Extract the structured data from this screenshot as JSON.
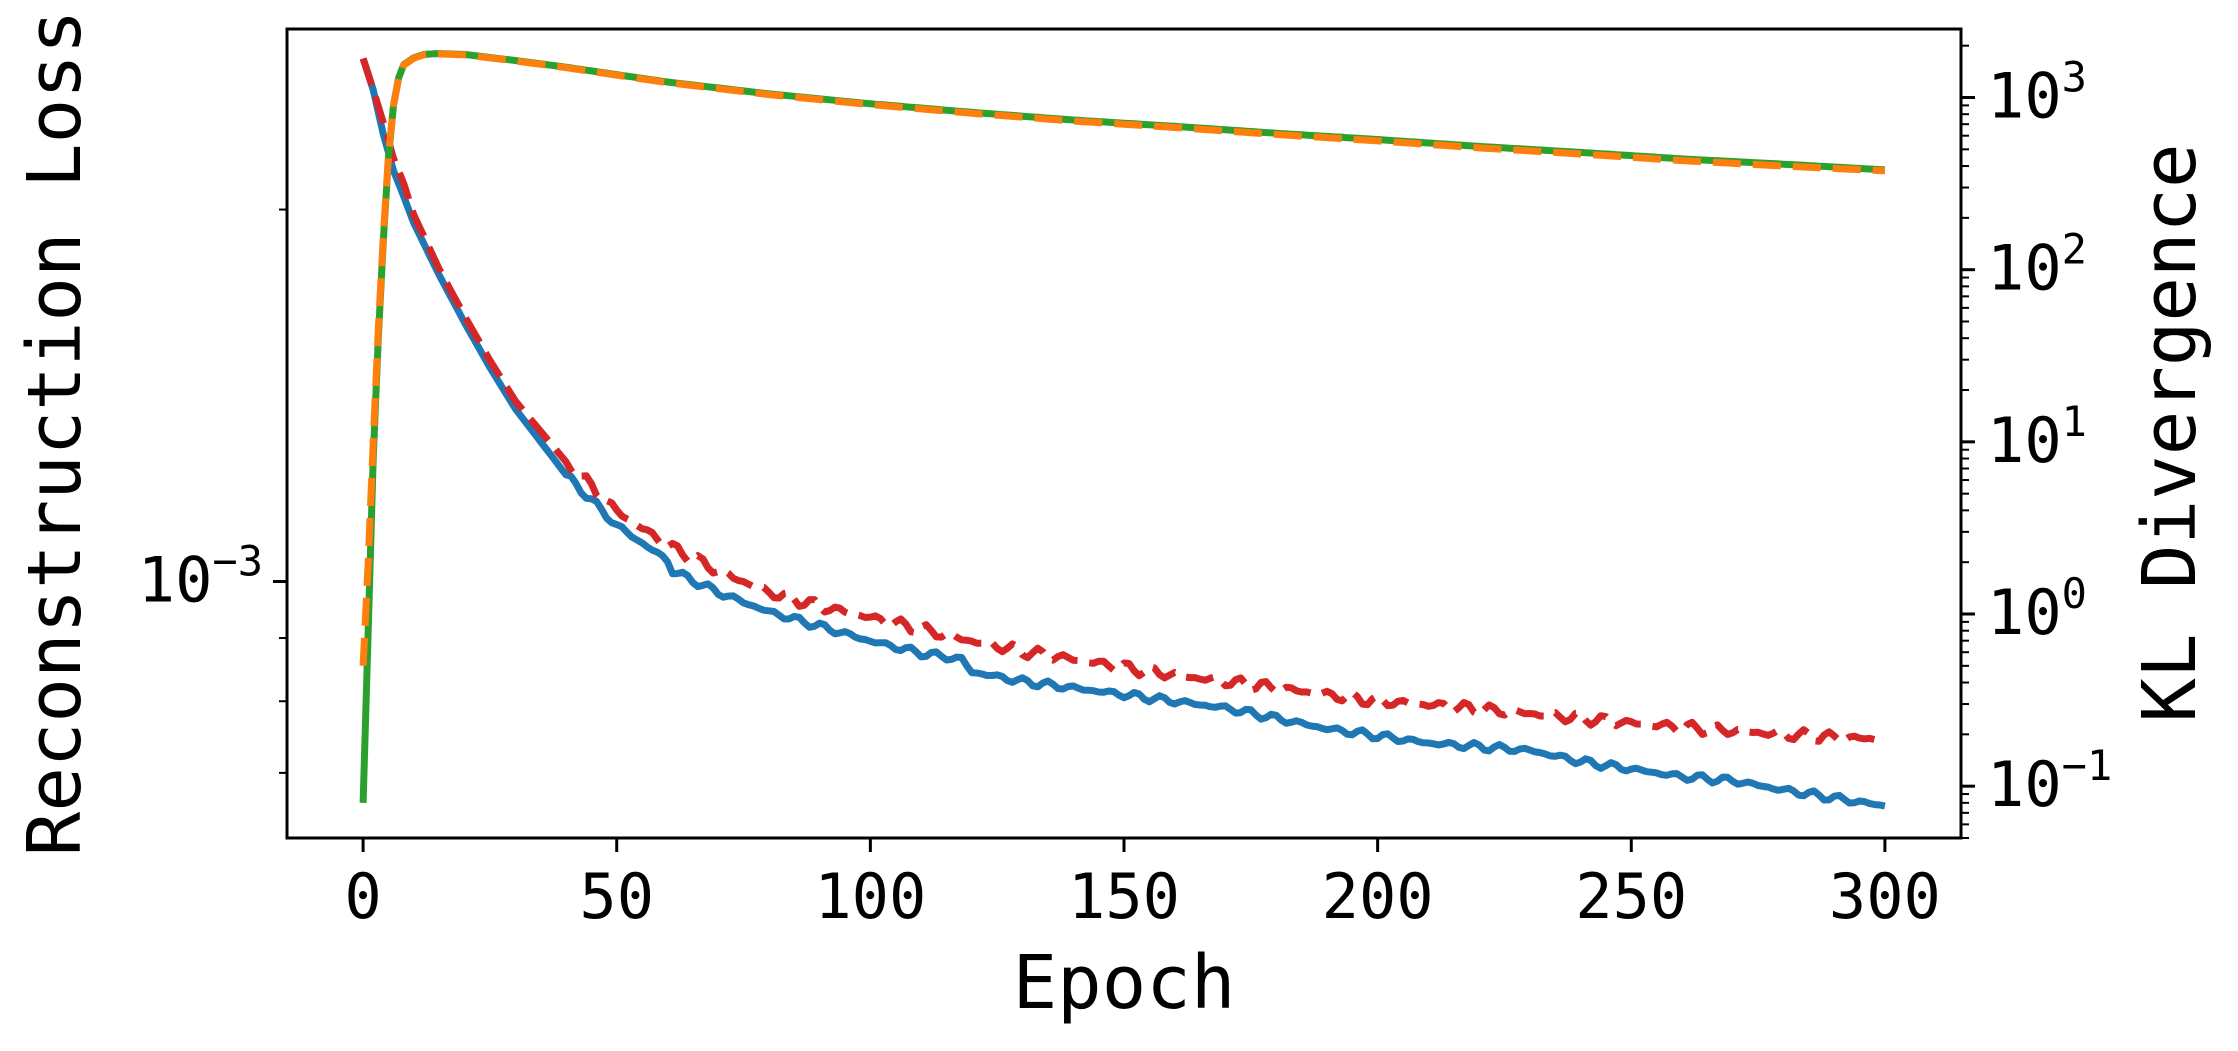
{
  "chart_data": {
    "type": "line",
    "title": "",
    "xlabel": "Epoch",
    "xlim": [
      -15,
      315
    ],
    "xticks": [
      0,
      50,
      100,
      150,
      200,
      250,
      300
    ],
    "y_left": {
      "label": "Reconstruction Loss",
      "scale": "log",
      "lim": [
        0.00062,
        0.0028
      ],
      "major_ticks": [
        {
          "value": 0.001,
          "base": "10",
          "exp": "−3"
        }
      ],
      "minor_ticks": [
        0.0007,
        0.0008,
        0.0009,
        0.002
      ]
    },
    "y_right": {
      "label": "KL Divergence",
      "scale": "log",
      "lim": [
        0.05,
        2500
      ],
      "major_ticks": [
        {
          "value": 0.1,
          "base": "10",
          "exp": "−1"
        },
        {
          "value": 1,
          "base": "10",
          "exp": "0"
        },
        {
          "value": 10,
          "base": "10",
          "exp": "1"
        },
        {
          "value": 100,
          "base": "10",
          "exp": "2"
        },
        {
          "value": 1000,
          "base": "10",
          "exp": "3"
        }
      ]
    },
    "grid": false,
    "legend": "none",
    "series": [
      {
        "axis": "left",
        "color": "#1f77b4",
        "style": "solid",
        "x": [
          0,
          2,
          4,
          6,
          8,
          10,
          15,
          20,
          25,
          30,
          40,
          50,
          60,
          61,
          70,
          80,
          90,
          100,
          110,
          118,
          120,
          130,
          140,
          150,
          160,
          170,
          180,
          190,
          200,
          210,
          220,
          230,
          240,
          250,
          260,
          270,
          280,
          290,
          300
        ],
        "y": [
          0.00265,
          0.0025,
          0.0023,
          0.00215,
          0.00205,
          0.00195,
          0.00177,
          0.00162,
          0.00149,
          0.00138,
          0.00122,
          0.00111,
          0.00104,
          0.00102,
          0.00098,
          0.000945,
          0.00092,
          0.000895,
          0.000875,
          0.000865,
          0.000845,
          0.00083,
          0.00082,
          0.00081,
          0.0008,
          0.00079,
          0.000775,
          0.00076,
          0.00075,
          0.00074,
          0.000735,
          0.00073,
          0.000715,
          0.000705,
          0.000695,
          0.00069,
          0.000678,
          0.000668,
          0.000658
        ]
      },
      {
        "axis": "left",
        "color": "#d62728",
        "style": "dashed",
        "x": [
          0,
          2,
          4,
          6,
          8,
          10,
          15,
          20,
          25,
          30,
          40,
          50,
          60,
          70,
          80,
          90,
          100,
          110,
          120,
          130,
          140,
          150,
          160,
          170,
          180,
          190,
          200,
          210,
          220,
          230,
          240,
          250,
          260,
          270,
          280,
          290,
          300
        ],
        "y": [
          0.00265,
          0.0025,
          0.00235,
          0.0022,
          0.0021,
          0.00198,
          0.00179,
          0.00164,
          0.00151,
          0.0014,
          0.00125,
          0.00114,
          0.00107,
          0.00102,
          0.00098,
          0.000955,
          0.000935,
          0.000915,
          0.000895,
          0.000878,
          0.000865,
          0.000852,
          0.00084,
          0.00083,
          0.00082,
          0.00081,
          0.0008,
          0.000795,
          0.000788,
          0.000782,
          0.000775,
          0.000768,
          0.000762,
          0.000757,
          0.000752,
          0.000748,
          0.000745
        ]
      },
      {
        "axis": "right",
        "color": "#2ca02c",
        "style": "solid",
        "x": [
          0,
          1,
          2,
          3,
          4,
          5,
          6,
          7,
          8,
          10,
          12,
          15,
          20,
          30,
          40,
          60,
          80,
          100,
          120,
          140,
          160,
          180,
          200,
          220,
          240,
          260,
          280,
          300
        ],
        "y": [
          0.08,
          0.8,
          8,
          40,
          150,
          450,
          900,
          1300,
          1550,
          1700,
          1780,
          1800,
          1780,
          1640,
          1500,
          1230,
          1050,
          920,
          820,
          740,
          680,
          620,
          570,
          520,
          480,
          440,
          410,
          380
        ]
      },
      {
        "axis": "right",
        "color": "#ff7f0e",
        "style": "dashed",
        "x": [
          0,
          1,
          2,
          3,
          4,
          5,
          6,
          7,
          8,
          10,
          12,
          15,
          20,
          30,
          40,
          60,
          80,
          100,
          120,
          140,
          160,
          180,
          200,
          220,
          240,
          260,
          280,
          300
        ],
        "y": [
          0.5,
          2,
          10,
          45,
          160,
          460,
          900,
          1290,
          1540,
          1690,
          1770,
          1790,
          1770,
          1630,
          1490,
          1220,
          1040,
          910,
          810,
          730,
          670,
          610,
          560,
          510,
          470,
          430,
          400,
          375
        ]
      }
    ]
  }
}
